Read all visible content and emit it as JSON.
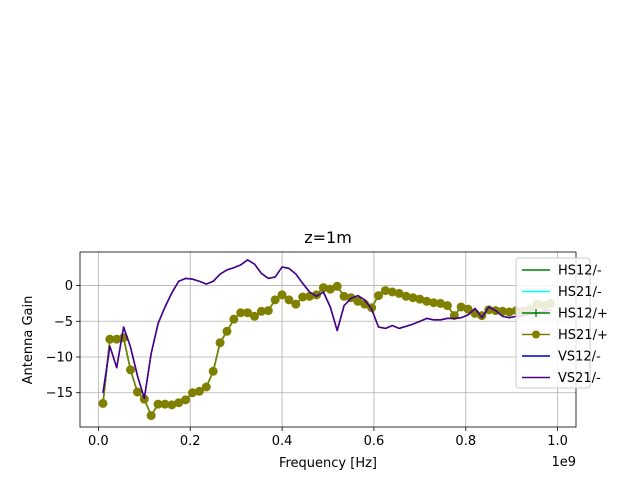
{
  "chart_data": {
    "type": "line",
    "title": "z=1m",
    "xlabel": "Frequency [Hz]",
    "ylabel": "Antenna Gain",
    "x_offset_label": "1e9",
    "xlim": [
      -0.04,
      1.04
    ],
    "ylim": [
      -19.8,
      4.7
    ],
    "x_ticks": [
      0.0,
      0.2,
      0.4,
      0.6,
      0.8,
      1.0
    ],
    "x_tick_labels": [
      "0.0",
      "0.2",
      "0.4",
      "0.6",
      "0.8",
      "1.0"
    ],
    "y_ticks": [
      -15,
      -10,
      -5,
      0
    ],
    "y_tick_labels": [
      "−15",
      "−10",
      "−5",
      "0"
    ],
    "grid": true,
    "legend_position": "right",
    "x": [
      0.01,
      0.025,
      0.04,
      0.055,
      0.07,
      0.085,
      0.1,
      0.115,
      0.13,
      0.145,
      0.16,
      0.175,
      0.19,
      0.205,
      0.22,
      0.235,
      0.25,
      0.265,
      0.28,
      0.295,
      0.31,
      0.325,
      0.34,
      0.355,
      0.37,
      0.385,
      0.4,
      0.415,
      0.43,
      0.445,
      0.46,
      0.475,
      0.49,
      0.505,
      0.52,
      0.535,
      0.55,
      0.565,
      0.58,
      0.595,
      0.61,
      0.625,
      0.64,
      0.655,
      0.67,
      0.685,
      0.7,
      0.715,
      0.73,
      0.745,
      0.76,
      0.775,
      0.79,
      0.805,
      0.82,
      0.835,
      0.85,
      0.865,
      0.88,
      0.895,
      0.91,
      0.925,
      0.94,
      0.955,
      0.97,
      0.985
    ],
    "series": [
      {
        "name": "HS12/-",
        "color": "#008000",
        "marker": "none",
        "values": [
          -16.5,
          -7.5,
          -7.5,
          -7.3,
          -11.8,
          -14.9,
          -15.9,
          -18.2,
          -16.6,
          -16.6,
          -16.7,
          -16.4,
          -16.0,
          -15.0,
          -14.8,
          -14.2,
          -12.0,
          -8.0,
          -6.4,
          -4.7,
          -3.8,
          -3.8,
          -4.3,
          -3.6,
          -3.5,
          -2.0,
          -1.3,
          -2.0,
          -2.6,
          -1.6,
          -1.5,
          -1.3,
          -0.3,
          -0.5,
          -0.1,
          -1.5,
          -1.7,
          -2.2,
          -2.6,
          -3.1,
          -1.4,
          -0.7,
          -0.9,
          -1.1,
          -1.5,
          -1.7,
          -1.9,
          -2.2,
          -2.4,
          -2.5,
          -2.8,
          -4.2,
          -3.0,
          -3.3,
          -3.9,
          -4.2,
          -3.4,
          -3.5,
          -3.6,
          -3.7,
          -3.5,
          -3.6,
          -3.3,
          -2.6,
          -2.8,
          -2.5
        ]
      },
      {
        "name": "HS21/-",
        "color": "#00ffff",
        "marker": "none",
        "values": [
          -16.5,
          -7.5,
          -7.5,
          -7.3,
          -11.8,
          -14.9,
          -15.9,
          -18.2,
          -16.6,
          -16.6,
          -16.7,
          -16.4,
          -16.0,
          -15.0,
          -14.8,
          -14.2,
          -12.0,
          -8.0,
          -6.4,
          -4.7,
          -3.8,
          -3.8,
          -4.3,
          -3.6,
          -3.5,
          -2.0,
          -1.3,
          -2.0,
          -2.6,
          -1.6,
          -1.5,
          -1.3,
          -0.3,
          -0.5,
          -0.1,
          -1.5,
          -1.7,
          -2.2,
          -2.6,
          -3.1,
          -1.4,
          -0.7,
          -0.9,
          -1.1,
          -1.5,
          -1.7,
          -1.9,
          -2.2,
          -2.4,
          -2.5,
          -2.8,
          -4.2,
          -3.0,
          -3.3,
          -3.9,
          -4.2,
          -3.4,
          -3.5,
          -3.6,
          -3.7,
          -3.5,
          -3.6,
          -3.3,
          -2.6,
          -2.8,
          -2.5
        ]
      },
      {
        "name": "HS12/+",
        "color": "#008000",
        "marker": "plus",
        "values": [
          -16.5,
          -7.5,
          -7.5,
          -7.3,
          -11.8,
          -14.9,
          -15.9,
          -18.2,
          -16.6,
          -16.6,
          -16.7,
          -16.4,
          -16.0,
          -15.0,
          -14.8,
          -14.2,
          -12.0,
          -8.0,
          -6.4,
          -4.7,
          -3.8,
          -3.8,
          -4.3,
          -3.6,
          -3.5,
          -2.0,
          -1.3,
          -2.0,
          -2.6,
          -1.6,
          -1.5,
          -1.3,
          -0.3,
          -0.5,
          -0.1,
          -1.5,
          -1.7,
          -2.2,
          -2.6,
          -3.1,
          -1.4,
          -0.7,
          -0.9,
          -1.1,
          -1.5,
          -1.7,
          -1.9,
          -2.2,
          -2.4,
          -2.5,
          -2.8,
          -4.2,
          -3.0,
          -3.3,
          -3.9,
          -4.2,
          -3.4,
          -3.5,
          -3.6,
          -3.7,
          -3.5,
          -3.6,
          -3.3,
          -2.6,
          -2.8,
          -2.5
        ]
      },
      {
        "name": "HS21/+",
        "color": "#808000",
        "marker": "circle",
        "values": [
          -16.5,
          -7.5,
          -7.5,
          -7.3,
          -11.8,
          -14.9,
          -15.9,
          -18.2,
          -16.6,
          -16.6,
          -16.7,
          -16.4,
          -16.0,
          -15.0,
          -14.8,
          -14.2,
          -12.0,
          -8.0,
          -6.4,
          -4.7,
          -3.8,
          -3.8,
          -4.3,
          -3.6,
          -3.5,
          -2.0,
          -1.3,
          -2.0,
          -2.6,
          -1.6,
          -1.5,
          -1.3,
          -0.3,
          -0.5,
          -0.1,
          -1.5,
          -1.7,
          -2.2,
          -2.6,
          -3.1,
          -1.4,
          -0.7,
          -0.9,
          -1.1,
          -1.5,
          -1.7,
          -1.9,
          -2.2,
          -2.4,
          -2.5,
          -2.8,
          -4.2,
          -3.0,
          -3.3,
          -3.9,
          -4.2,
          -3.4,
          -3.5,
          -3.6,
          -3.7,
          -3.5,
          -3.6,
          -3.3,
          -2.6,
          -2.8,
          -2.5
        ]
      },
      {
        "name": "VS12/-",
        "color": "#0000cd",
        "marker": "none",
        "values": [
          -15.0,
          -8.5,
          -11.5,
          -5.8,
          -8.6,
          -12.6,
          -15.8,
          -9.5,
          -5.3,
          -3.0,
          -1.0,
          0.6,
          1.0,
          0.9,
          0.6,
          0.2,
          0.6,
          1.6,
          2.2,
          2.5,
          2.9,
          3.6,
          3.0,
          1.7,
          1.0,
          1.2,
          2.6,
          2.4,
          1.6,
          0.3,
          -0.9,
          -1.5,
          -0.9,
          -3.0,
          -6.3,
          -2.8,
          -1.8,
          -1.4,
          -2.0,
          -3.3,
          -5.8,
          -6.0,
          -5.6,
          -6.0,
          -5.7,
          -5.4,
          -5.0,
          -4.6,
          -4.8,
          -4.8,
          -4.6,
          -4.6,
          -4.5,
          -4.1,
          -3.2,
          -4.5,
          -3.0,
          -3.5,
          -4.3,
          -4.5,
          -4.3,
          -4.2,
          -4.0,
          -3.9,
          -3.6,
          -3.4
        ]
      },
      {
        "name": "VS21/-",
        "color": "#4b0082",
        "marker": "none",
        "values": [
          -15.0,
          -8.5,
          -11.5,
          -5.8,
          -8.6,
          -12.6,
          -15.8,
          -9.5,
          -5.3,
          -3.0,
          -1.0,
          0.6,
          1.0,
          0.9,
          0.6,
          0.2,
          0.6,
          1.6,
          2.2,
          2.5,
          2.9,
          3.6,
          3.0,
          1.7,
          1.0,
          1.2,
          2.6,
          2.4,
          1.6,
          0.3,
          -0.9,
          -1.5,
          -0.9,
          -3.0,
          -6.3,
          -2.8,
          -1.8,
          -1.4,
          -2.0,
          -3.3,
          -5.8,
          -6.0,
          -5.6,
          -6.0,
          -5.7,
          -5.4,
          -5.0,
          -4.6,
          -4.8,
          -4.8,
          -4.6,
          -4.6,
          -4.5,
          -4.1,
          -3.2,
          -4.5,
          -3.0,
          -3.5,
          -4.3,
          -4.5,
          -4.3,
          -4.2,
          -4.0,
          -3.9,
          -3.6,
          -3.4
        ]
      }
    ]
  }
}
